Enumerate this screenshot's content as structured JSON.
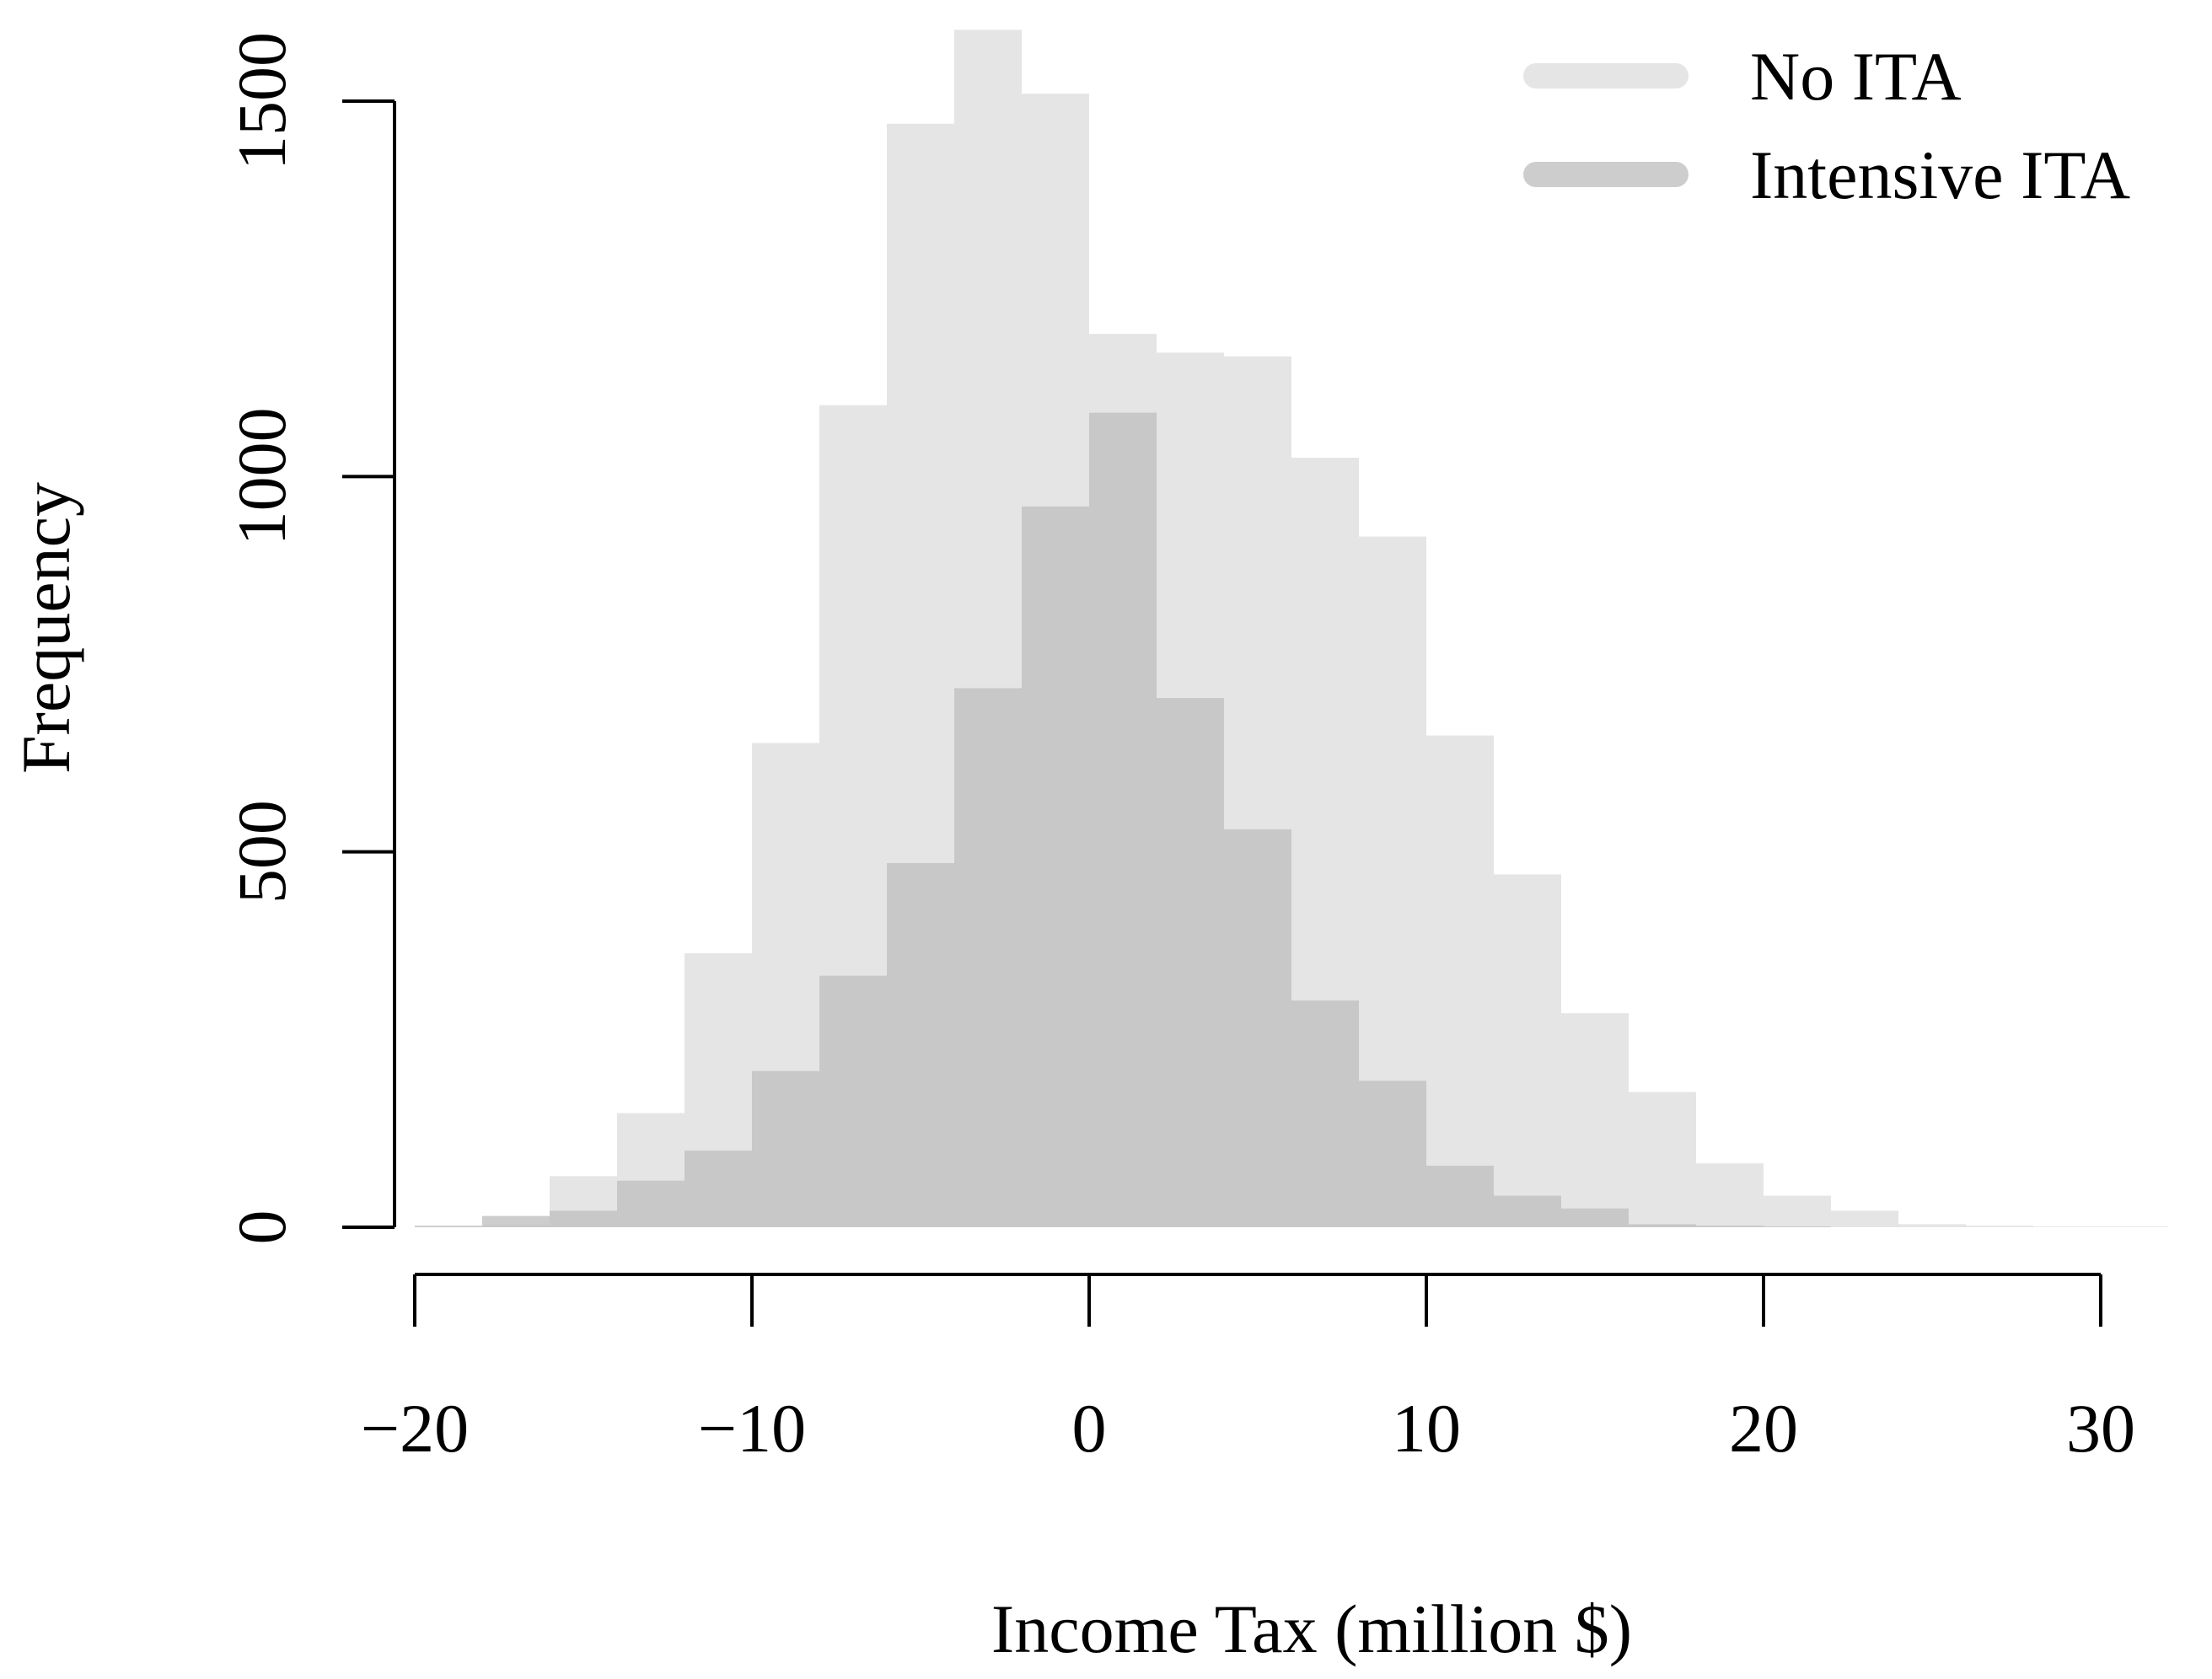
{
  "chart_data": {
    "type": "bar",
    "subtype": "overlaid-histogram",
    "title": "",
    "xlabel": "Income Tax (million $)",
    "ylabel": "Frequency",
    "xlim": [
      -20,
      32
    ],
    "ylim": [
      0,
      1600
    ],
    "x_ticks": [
      -20,
      -10,
      0,
      10,
      20,
      30
    ],
    "x_tick_labels": [
      "−20",
      "−10",
      "0",
      "10",
      "20",
      "30"
    ],
    "y_ticks": [
      0,
      500,
      1000,
      1500
    ],
    "y_tick_labels": [
      "0",
      "500",
      "1000",
      "1500"
    ],
    "grid": false,
    "legend": {
      "position": "top-right",
      "entries": [
        "No ITA",
        "Intensive ITA"
      ]
    },
    "bin_width": 2,
    "series": [
      {
        "name": "No ITA",
        "color": "#d3d3d3",
        "opacity": 0.6,
        "bin_starts": [
          -20,
          -18,
          -16,
          -14,
          -12,
          -10,
          -8,
          -6,
          -4,
          -2,
          0,
          2,
          4,
          6,
          8,
          10,
          12,
          14,
          16,
          18,
          20,
          22,
          24,
          26,
          28,
          30
        ],
        "values": [
          1,
          3,
          68,
          152,
          365,
          645,
          1095,
          1470,
          1595,
          1510,
          1190,
          1165,
          1160,
          1025,
          920,
          655,
          470,
          285,
          180,
          85,
          42,
          22,
          4,
          2,
          1,
          1
        ]
      },
      {
        "name": "Intensive ITA",
        "color": "#c0c0c0",
        "opacity": 0.8,
        "bin_starts": [
          -20,
          -18,
          -16,
          -14,
          -12,
          -10,
          -8,
          -6,
          -4,
          -2,
          0,
          2,
          4,
          6,
          8,
          10,
          12,
          14,
          16,
          18,
          20,
          22,
          24,
          26,
          28,
          30
        ],
        "values": [
          2,
          15,
          22,
          62,
          102,
          208,
          335,
          485,
          718,
          960,
          1085,
          705,
          530,
          302,
          195,
          82,
          42,
          25,
          4,
          2,
          1,
          0,
          0,
          0,
          0,
          0
        ]
      }
    ]
  }
}
